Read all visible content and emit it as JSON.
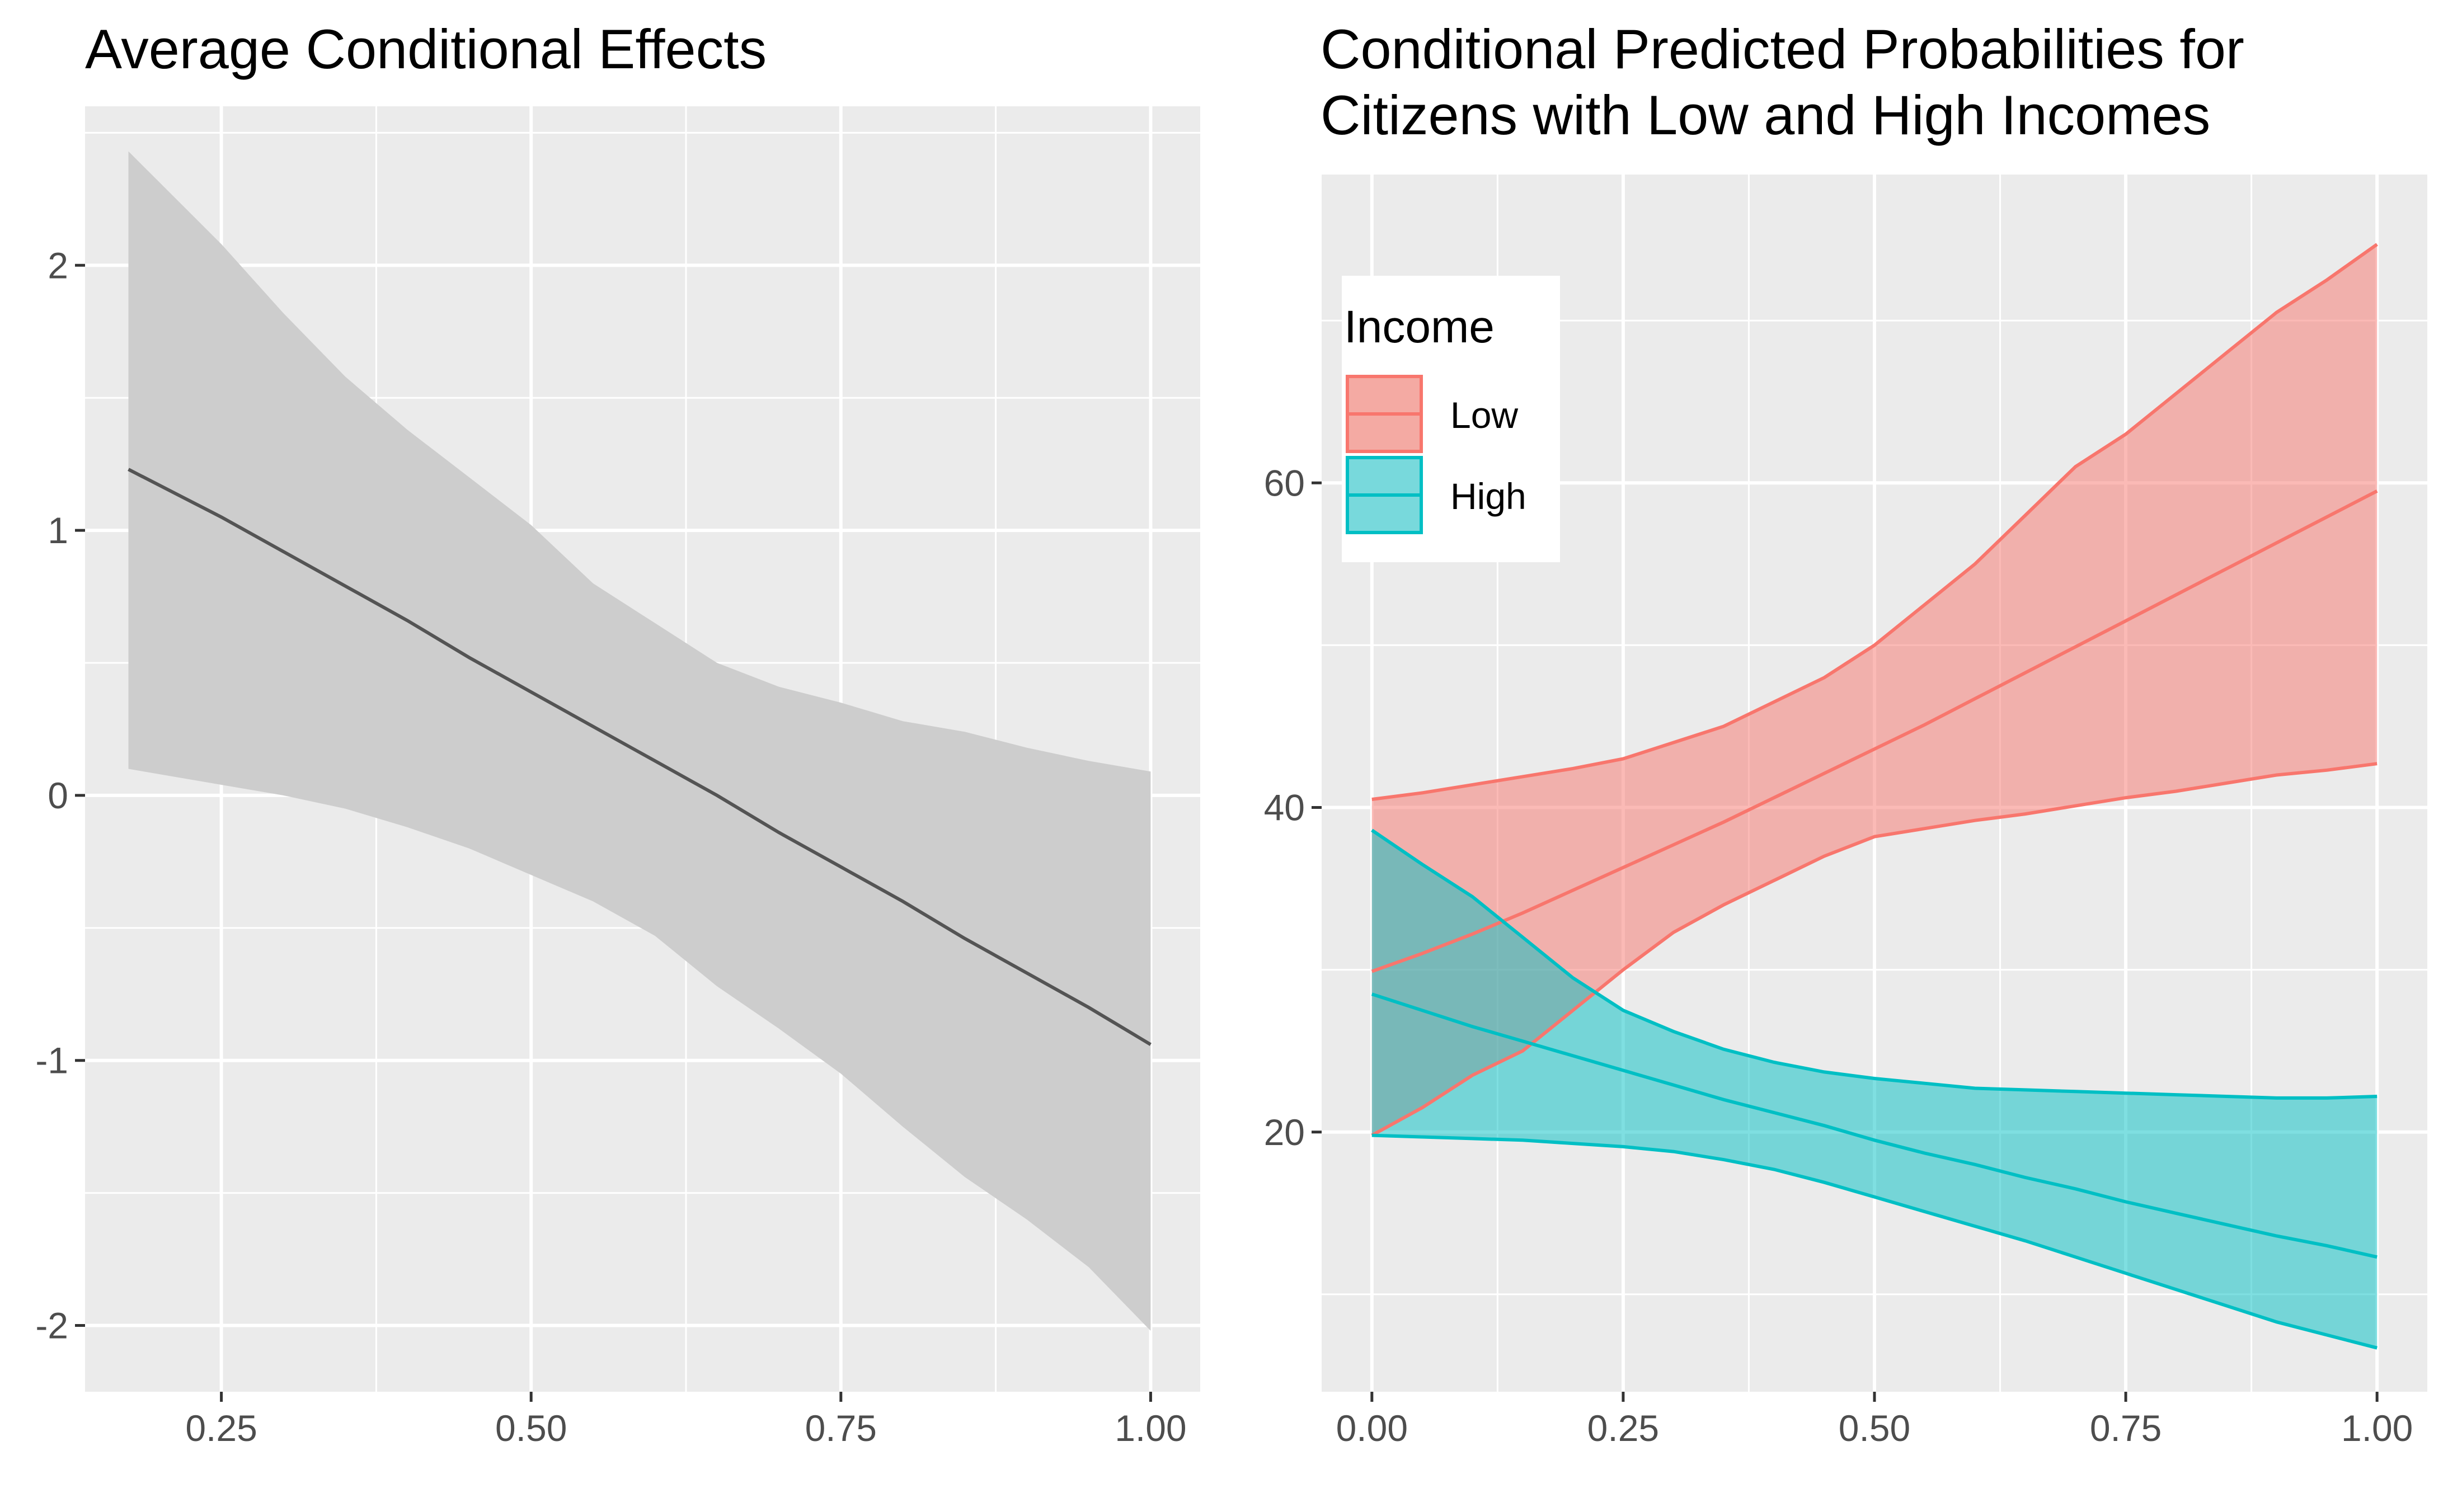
{
  "chart_data": [
    {
      "type": "line",
      "title": "Average Conditional Effects",
      "xlabel": "",
      "ylabel": "",
      "xlim": [
        0.14,
        1.04
      ],
      "ylim": [
        -2.25,
        2.6
      ],
      "x_ticks": [
        0.25,
        0.5,
        0.75,
        1.0
      ],
      "x_tick_labels": [
        "0.25",
        "0.50",
        "0.75",
        "1.00"
      ],
      "y_ticks": [
        -2,
        -1,
        0,
        1,
        2
      ],
      "y_tick_labels": [
        "-2",
        "-1",
        "0",
        "1",
        "2"
      ],
      "grid": true,
      "series": [
        {
          "color": "#545454",
          "ribbon_color": "#cdcdcd",
          "x": [
            0.175,
            0.25,
            0.3,
            0.35,
            0.4,
            0.45,
            0.5,
            0.55,
            0.6,
            0.65,
            0.7,
            0.75,
            0.8,
            0.85,
            0.9,
            0.95,
            1.0
          ],
          "y": [
            1.23,
            1.05,
            0.92,
            0.79,
            0.66,
            0.52,
            0.39,
            0.26,
            0.13,
            0.0,
            -0.14,
            -0.27,
            -0.4,
            -0.54,
            -0.67,
            -0.8,
            -0.94
          ],
          "lower": [
            0.1,
            0.04,
            0.0,
            -0.05,
            -0.12,
            -0.2,
            -0.3,
            -0.4,
            -0.53,
            -0.72,
            -0.88,
            -1.05,
            -1.25,
            -1.44,
            -1.6,
            -1.78,
            -2.02
          ],
          "upper": [
            2.43,
            2.08,
            1.82,
            1.58,
            1.38,
            1.2,
            1.02,
            0.8,
            0.65,
            0.5,
            0.41,
            0.35,
            0.28,
            0.24,
            0.18,
            0.13,
            0.09
          ]
        }
      ]
    },
    {
      "type": "line",
      "title": "Conditional Predicted Probabilities for Citizens with Low and High Incomes",
      "title_lines": [
        "Conditional Predicted Probabilities for",
        "Citizens with Low and High Incomes"
      ],
      "xlabel": "",
      "ylabel": "",
      "xlim": [
        -0.05,
        1.05
      ],
      "ylim": [
        4.0,
        79.0
      ],
      "x_ticks": [
        0.0,
        0.25,
        0.5,
        0.75,
        1.0
      ],
      "x_tick_labels": [
        "0.00",
        "0.25",
        "0.50",
        "0.75",
        "1.00"
      ],
      "y_ticks": [
        20,
        40,
        60
      ],
      "y_tick_labels": [
        "20",
        "40",
        "60"
      ],
      "grid": true,
      "legend": {
        "title": "Income",
        "position": "top-left",
        "entries": [
          {
            "label": "Low",
            "color": "#f8766d",
            "fill": "#f4aaa3"
          },
          {
            "label": "High",
            "color": "#00bfc4",
            "fill": "#78d9dc"
          }
        ]
      },
      "series": [
        {
          "name": "Low",
          "color": "#f8766d",
          "fill": "#f8766d",
          "x": [
            0.0,
            0.05,
            0.1,
            0.15,
            0.2,
            0.25,
            0.3,
            0.35,
            0.4,
            0.45,
            0.5,
            0.55,
            0.6,
            0.65,
            0.7,
            0.75,
            0.8,
            0.85,
            0.9,
            0.95,
            1.0
          ],
          "y": [
            29.9,
            31.0,
            32.2,
            33.5,
            34.9,
            36.3,
            37.7,
            39.1,
            40.6,
            42.1,
            43.6,
            45.1,
            46.7,
            48.3,
            49.9,
            51.5,
            53.1,
            54.7,
            56.3,
            57.9,
            59.5
          ],
          "lower": [
            19.8,
            21.5,
            23.5,
            25.0,
            27.5,
            30.0,
            32.3,
            34.0,
            35.5,
            37.0,
            38.2,
            38.7,
            39.2,
            39.6,
            40.1,
            40.6,
            41.0,
            41.5,
            42.0,
            42.3,
            42.7
          ],
          "upper": [
            40.5,
            40.9,
            41.4,
            41.9,
            42.4,
            43.0,
            44.0,
            45.0,
            46.5,
            48.0,
            50.0,
            52.5,
            55.0,
            58.0,
            61.0,
            63.0,
            65.5,
            68.0,
            70.5,
            72.5,
            74.7
          ]
        },
        {
          "name": "High",
          "color": "#00bfc4",
          "fill": "#00bfc4",
          "x": [
            0.0,
            0.05,
            0.1,
            0.15,
            0.2,
            0.25,
            0.3,
            0.35,
            0.4,
            0.45,
            0.5,
            0.55,
            0.6,
            0.65,
            0.7,
            0.75,
            0.8,
            0.85,
            0.9,
            0.95,
            1.0
          ],
          "y": [
            28.5,
            27.5,
            26.5,
            25.6,
            24.7,
            23.8,
            22.9,
            22.0,
            21.2,
            20.4,
            19.5,
            18.7,
            18.0,
            17.2,
            16.5,
            15.7,
            15.0,
            14.3,
            13.6,
            13.0,
            12.3
          ],
          "lower": [
            19.8,
            19.7,
            19.6,
            19.5,
            19.3,
            19.1,
            18.8,
            18.3,
            17.7,
            16.9,
            16.0,
            15.1,
            14.2,
            13.3,
            12.3,
            11.3,
            10.3,
            9.3,
            8.3,
            7.5,
            6.7
          ],
          "upper": [
            38.6,
            36.5,
            34.5,
            32.0,
            29.5,
            27.5,
            26.2,
            25.1,
            24.3,
            23.7,
            23.3,
            23.0,
            22.7,
            22.6,
            22.5,
            22.4,
            22.3,
            22.2,
            22.1,
            22.1,
            22.2
          ]
        }
      ]
    }
  ]
}
